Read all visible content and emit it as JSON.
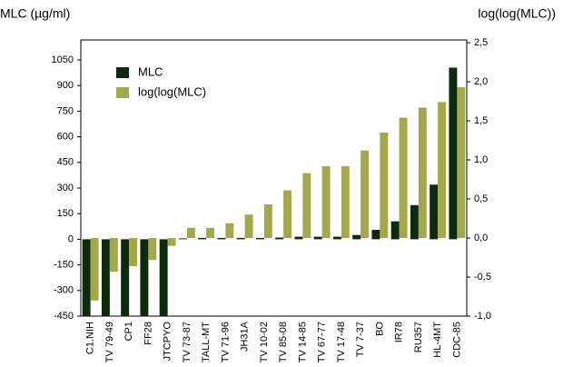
{
  "chart_data": {
    "type": "bar",
    "ylabel": "MLC (µg/ml)",
    "y2label": "log(log(MLC))",
    "categories": [
      "C1.NIH",
      "TV 79-49",
      "CP1",
      "FF28",
      "JTCPYO",
      "TV 73-87",
      "TALL-MT",
      "TV 71-96",
      "JH31A",
      "TV 10-02",
      "TV 85-08",
      "TV 14-85",
      "TV 67-77",
      "TV 17-48",
      "TV 7-37",
      "BO",
      "IR78",
      "RU357",
      "HL-4MT",
      "CDC-85"
    ],
    "series": [
      {
        "name": "MLC",
        "color": "#0d2a0d",
        "values": [
          -450,
          -450,
          -450,
          -450,
          -450,
          5,
          8,
          8,
          8,
          8,
          10,
          15,
          15,
          15,
          25,
          55,
          105,
          200,
          320,
          1005
        ]
      },
      {
        "name": "log(log(MLC)",
        "color": "#a3a848",
        "axis": "y2",
        "values": [
          -0.8,
          -0.43,
          -0.36,
          -0.28,
          -0.1,
          0.13,
          0.13,
          0.19,
          0.3,
          0.43,
          0.61,
          0.83,
          0.92,
          0.92,
          1.12,
          1.35,
          1.54,
          1.67,
          1.74,
          1.93
        ]
      }
    ],
    "ylim": [
      -450,
      1167
    ],
    "yticks": [
      -450,
      -300,
      -150,
      0,
      150,
      300,
      450,
      600,
      750,
      900,
      1050
    ],
    "y2lim": [
      -1,
      2.535
    ],
    "y2ticks": [
      {
        "value": -1,
        "label": "-1,0"
      },
      {
        "value": -0.5,
        "label": "-0,5"
      },
      {
        "value": 0,
        "label": "0,0"
      },
      {
        "value": 0.5,
        "label": "0,5"
      },
      {
        "value": 1,
        "label": "1,0"
      },
      {
        "value": 1.5,
        "label": "1,5"
      },
      {
        "value": 2,
        "label": "2,0"
      },
      {
        "value": 2.5,
        "label": "2,5"
      }
    ],
    "legend": "upper left",
    "grid": false
  }
}
